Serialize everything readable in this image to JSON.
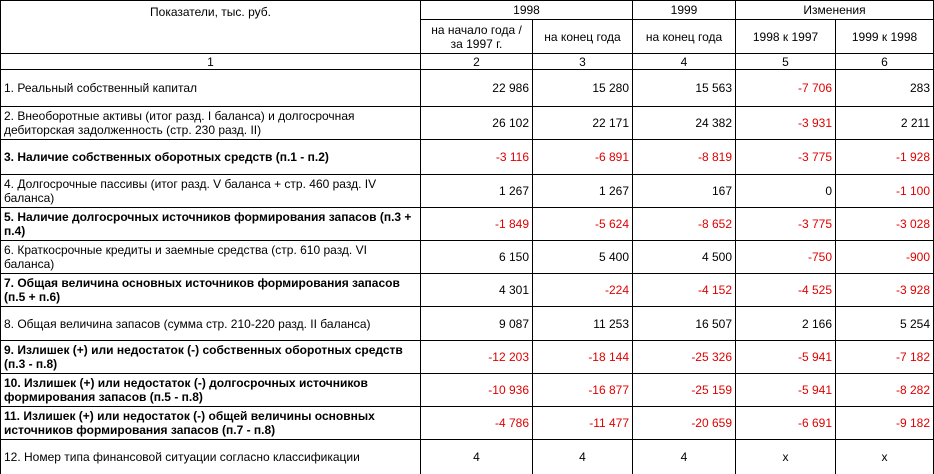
{
  "header": {
    "indicator": "Показатели, тыс. руб.",
    "groups": [
      "1998",
      "1999",
      "Изменения"
    ],
    "subheaders": [
      "на начало года / за 1997 г.",
      "на конец года",
      "на конец года",
      "1998 к 1997",
      "1999 к 1998"
    ],
    "numbers": [
      "1",
      "2",
      "3",
      "4",
      "5",
      "6"
    ]
  },
  "table": {
    "rows": [
      [
        "1. Реальный собственный капитал",
        "22 986",
        "15 280",
        "15 563",
        "-7 706",
        "283"
      ],
      [
        "2. Внеоборотные активы (итог разд. I баланса) и долгосрочная дебиторская задолженность (стр. 230 разд. II)",
        "26 102",
        "22 171",
        "24 382",
        "-3 931",
        "2 211"
      ],
      [
        "3. Наличие собственных оборотных средств (п.1 - п.2)",
        "-3 116",
        "-6 891",
        "-8 819",
        "-3 775",
        "-1 928"
      ],
      [
        "4. Долгосрочные пассивы (итог разд. V баланса + стр. 460 разд. IV баланса)",
        "1 267",
        "1 267",
        "167",
        "0",
        "-1 100"
      ],
      [
        "5. Наличие долгосрочных источников формирования запасов (п.3 + п.4)",
        "-1 849",
        "-5 624",
        "-8 652",
        "-3 775",
        "-3 028"
      ],
      [
        "6. Краткосрочные кредиты и заемные средства (стр. 610 разд. VI баланса)",
        "6 150",
        "5 400",
        "4 500",
        "-750",
        "-900"
      ],
      [
        "7. Общая величина основных источников формирования запасов (п.5 + п.6)",
        "4 301",
        "-224",
        "-4 152",
        "-4 525",
        "-3 928"
      ],
      [
        "8. Общая величина запасов (сумма стр. 210-220 разд. II баланса)",
        "9 087",
        "11 253",
        "16 507",
        "2 166",
        "5 254"
      ],
      [
        "9. Излишек (+) или недостаток (-) собственных оборотных средств (п.3 - п.8)",
        "-12 203",
        "-18 144",
        "-25 326",
        "-5 941",
        "-7 182"
      ],
      [
        "10. Излишек (+) или недостаток (-) долгосрочных источников формирования запасов (п.5 - п.8)",
        "-10 936",
        "-16 877",
        "-25 159",
        "-5 941",
        "-8 282"
      ],
      [
        "11. Излишек (+) или недостаток (-) общей величины основных источников формирования запасов (п.7 - п.8)",
        "-4 786",
        "-11 477",
        "-20 659",
        "-6 691",
        "-9 182"
      ],
      [
        "12. Номер типа финансовой ситуации согласно классификации",
        "4",
        "4",
        "4",
        "x",
        "x"
      ]
    ]
  }
}
